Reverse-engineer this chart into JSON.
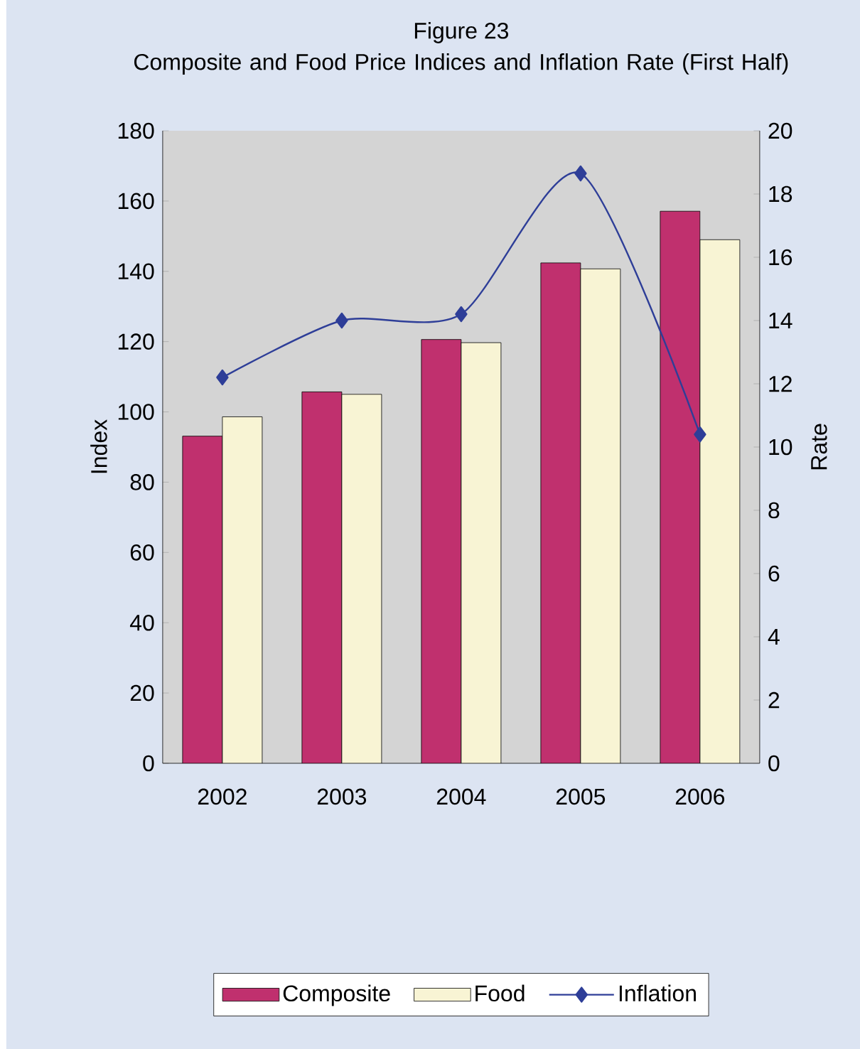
{
  "chart_data": {
    "type": "bar",
    "title": "Figure 23",
    "subtitle": "Composite and Food Price Indices and Inflation Rate (First Half)",
    "ylabel": "Index",
    "y2label": "Rate",
    "categories": [
      "2002",
      "2003",
      "2004",
      "2005",
      "2006"
    ],
    "series": [
      {
        "name": "Composite",
        "color": "#c0306e",
        "values": [
          93.1,
          105.7,
          120.6,
          142.4,
          157.1
        ]
      },
      {
        "name": "Food",
        "color": "#f8f4d4",
        "values": [
          98.6,
          105,
          119.7,
          140.7,
          149
        ]
      },
      {
        "name": "Inflation",
        "type": "line",
        "axis": "y2",
        "color": "#2e3e98",
        "marker": "diamond",
        "line_style": "solid",
        "values": [
          12.2,
          14.0,
          14.2,
          18.65,
          10.4
        ]
      }
    ],
    "ylim": [
      0,
      180
    ],
    "yticks": [
      0,
      20,
      40,
      60,
      80,
      100,
      120,
      140,
      160,
      180
    ],
    "y2lim": [
      0,
      20
    ],
    "y2ticks": [
      0,
      2,
      4,
      6,
      8,
      10,
      12,
      14,
      16,
      18,
      20
    ],
    "grid": false,
    "legend": "bottom"
  }
}
